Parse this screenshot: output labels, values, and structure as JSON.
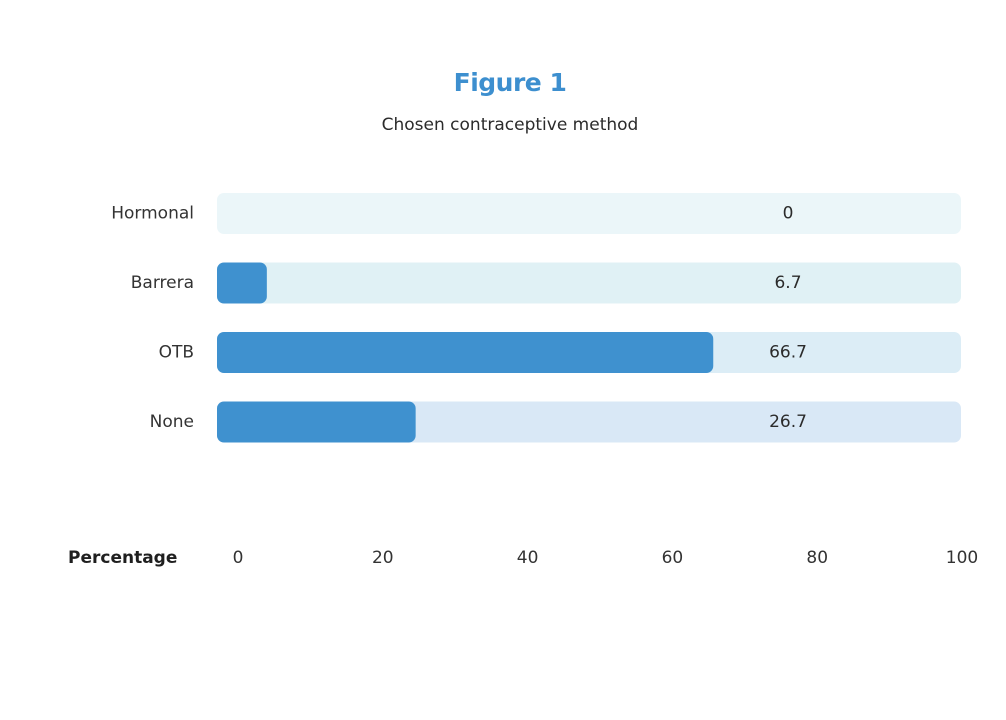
{
  "chart_data": {
    "type": "bar",
    "orientation": "horizontal",
    "title": "Figure 1",
    "subtitle": "Chosen contraceptive method",
    "categories": [
      "Hormonal",
      "Barrera",
      "OTB",
      "None"
    ],
    "values": [
      0,
      6.7,
      66.7,
      26.7
    ],
    "value_labels": [
      "0",
      "6.7",
      "66.7",
      "26.7"
    ],
    "xlabel": "Percentage",
    "xlim": [
      0,
      100
    ],
    "xticks": [
      0,
      20,
      40,
      60,
      80,
      100
    ],
    "xtick_labels": [
      "0",
      "20",
      "40",
      "60",
      "80",
      "100"
    ],
    "grid": false,
    "legend": "none",
    "colors": {
      "bar": "#3f91cf",
      "track": [
        "#ebf6f9",
        "#e0f1f5",
        "#dcedf6",
        "#d9e8f6"
      ],
      "title": "#3d8fcf"
    }
  }
}
